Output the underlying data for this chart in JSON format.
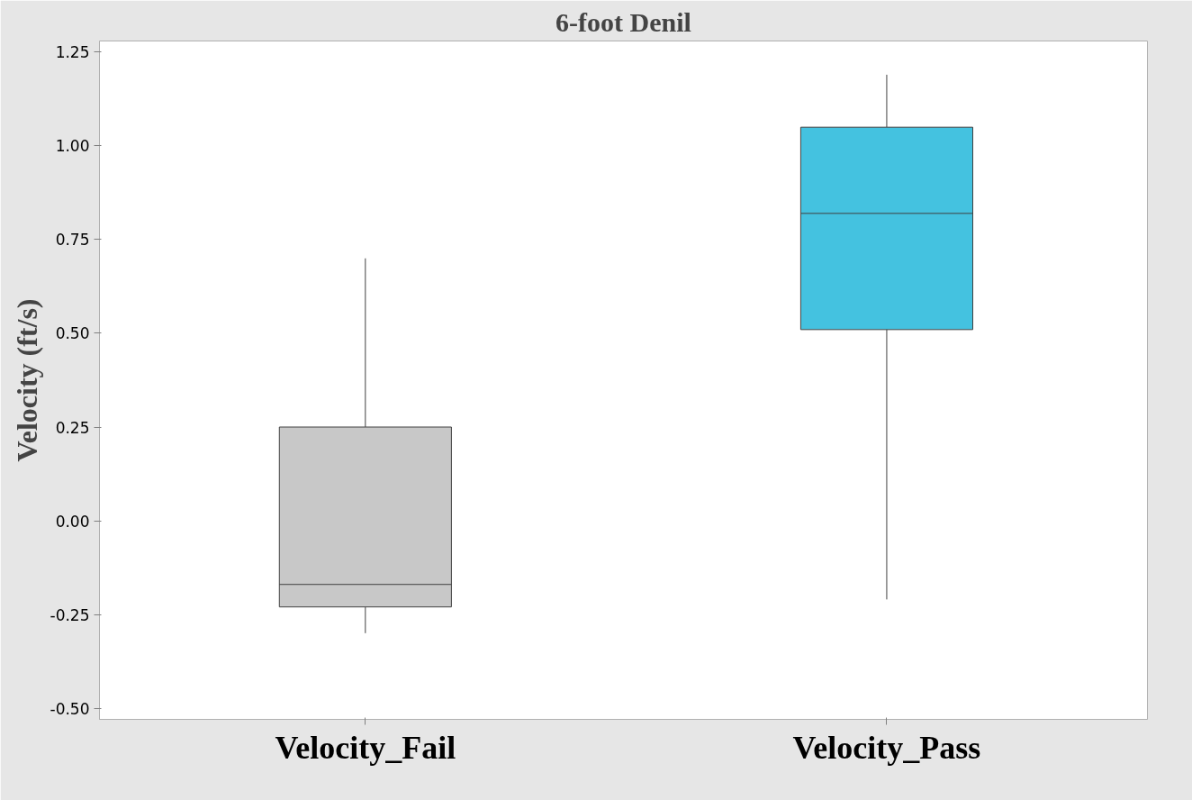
{
  "chart_data": {
    "type": "box",
    "title": "6-foot Denil",
    "ylabel": "Velocity (ft/s)",
    "categories": [
      "Velocity_Fail",
      "Velocity_Pass"
    ],
    "boxes": [
      {
        "low": -0.3,
        "q1": -0.23,
        "median": -0.17,
        "q3": 0.25,
        "high": 0.7
      },
      {
        "low": -0.21,
        "q1": 0.51,
        "median": 0.82,
        "q3": 1.05,
        "high": 1.19
      }
    ],
    "colors": [
      "#c8c8c8",
      "#44c2e0"
    ],
    "ylim": [
      -0.53,
      1.28
    ],
    "yticks": [
      {
        "value": -0.5,
        "label": "-0.50"
      },
      {
        "value": -0.25,
        "label": "-0.25"
      },
      {
        "value": 0,
        "label": "0.00"
      },
      {
        "value": 0.25,
        "label": "0.25"
      },
      {
        "value": 0.5,
        "label": "0.50"
      },
      {
        "value": 0.75,
        "label": "0.75"
      },
      {
        "value": 1,
        "label": "1.00"
      },
      {
        "value": 1.25,
        "label": "1.25"
      }
    ],
    "grid": false
  }
}
